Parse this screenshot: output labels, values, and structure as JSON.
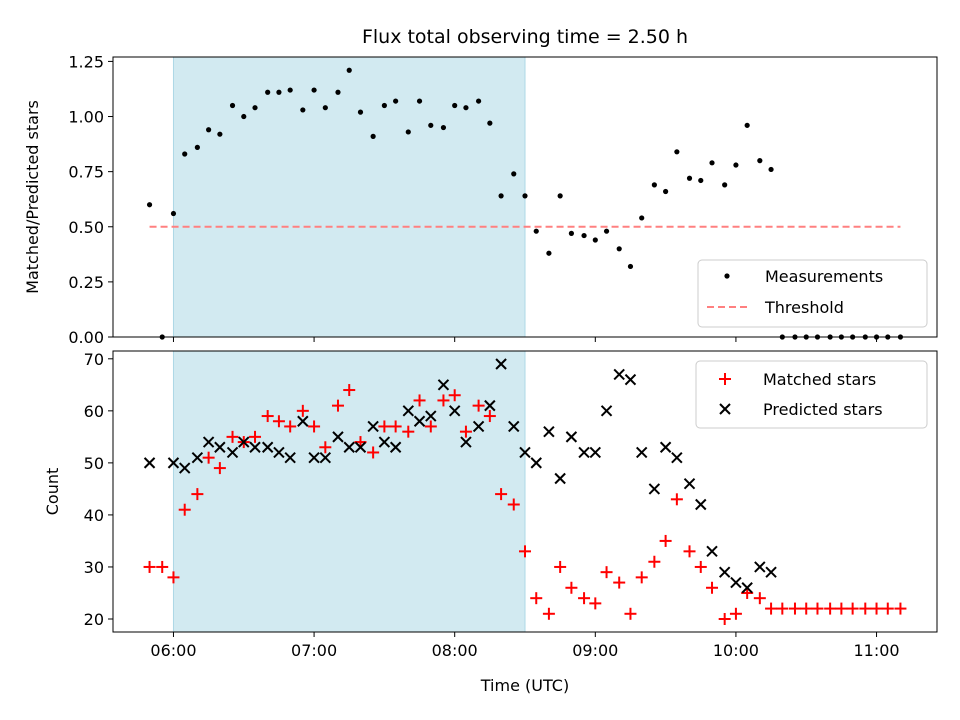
{
  "chart_data": {
    "type": "scatter",
    "title": "Flux total observing time = 2.50 h",
    "xlabel": "Time (UTC)",
    "x_ticks": [
      "06:00",
      "07:00",
      "08:00",
      "09:00",
      "10:00",
      "11:00"
    ],
    "x_tick_hours": [
      6,
      7,
      8,
      9,
      10,
      11
    ],
    "xlim_hours": [
      5.57,
      11.43
    ],
    "shaded_interval_hours": [
      6.0,
      8.5
    ],
    "shade_color": "#add8e6",
    "top": {
      "ylabel": "Matched/Predicted stars",
      "ylim": [
        0,
        1.27
      ],
      "y_ticks": [
        "0.00",
        "0.25",
        "0.50",
        "0.75",
        "1.00",
        "1.25"
      ],
      "threshold": 0.5,
      "threshold_x_range_hours": [
        5.83,
        11.17
      ],
      "threshold_color": "#ff8080",
      "point_color": "#000000",
      "legend": [
        "Measurements",
        "Threshold"
      ],
      "x_hours": [
        5.83,
        5.92,
        6.0,
        6.08,
        6.17,
        6.25,
        6.33,
        6.42,
        6.5,
        6.58,
        6.67,
        6.75,
        6.83,
        6.92,
        7.0,
        7.08,
        7.17,
        7.25,
        7.33,
        7.42,
        7.5,
        7.58,
        7.67,
        7.75,
        7.83,
        7.92,
        8.0,
        8.08,
        8.17,
        8.25,
        8.33,
        8.42,
        8.5,
        8.58,
        8.67,
        8.75,
        8.83,
        8.92,
        9.0,
        9.08,
        9.17,
        9.25,
        9.33,
        9.42,
        9.5,
        9.58,
        9.67,
        9.75,
        9.83,
        9.92,
        10.0,
        10.08,
        10.17,
        10.25,
        10.33,
        10.42,
        10.5,
        10.58,
        10.67,
        10.75,
        10.83,
        10.92,
        11.0,
        11.08,
        11.17
      ],
      "values": [
        0.6,
        0.0,
        0.56,
        0.83,
        0.86,
        0.94,
        0.92,
        1.05,
        1.0,
        1.04,
        1.11,
        1.11,
        1.12,
        1.03,
        1.12,
        1.04,
        1.11,
        1.21,
        1.02,
        0.91,
        1.05,
        1.07,
        0.93,
        1.07,
        0.96,
        0.95,
        1.05,
        1.04,
        1.07,
        0.97,
        0.64,
        0.74,
        0.64,
        0.48,
        0.38,
        0.64,
        0.47,
        0.46,
        0.44,
        0.48,
        0.4,
        0.32,
        0.54,
        0.69,
        0.66,
        0.84,
        0.72,
        0.71,
        0.79,
        0.69,
        0.78,
        0.96,
        0.8,
        0.76,
        0.0,
        0.0,
        0.0,
        0.0,
        0.0,
        0.0,
        0.0,
        0.0,
        0.0,
        0.0,
        0.0
      ]
    },
    "bottom": {
      "ylabel": "Count",
      "ylim": [
        17.5,
        71.5
      ],
      "y_ticks": [
        "20",
        "30",
        "40",
        "50",
        "60",
        "70"
      ],
      "legend": [
        "Matched stars",
        "Predicted stars"
      ],
      "series": [
        {
          "name": "Matched stars",
          "color": "#ff0000",
          "marker": "plus",
          "x_hours": [
            5.83,
            5.92,
            6.0,
            6.08,
            6.17,
            6.25,
            6.33,
            6.42,
            6.5,
            6.58,
            6.67,
            6.75,
            6.83,
            6.92,
            7.0,
            7.08,
            7.17,
            7.25,
            7.33,
            7.42,
            7.5,
            7.58,
            7.67,
            7.75,
            7.83,
            7.92,
            8.0,
            8.08,
            8.17,
            8.25,
            8.33,
            8.42,
            8.5,
            8.58,
            8.67,
            8.75,
            8.83,
            8.92,
            9.0,
            9.08,
            9.17,
            9.25,
            9.33,
            9.42,
            9.5,
            9.58,
            9.67,
            9.75,
            9.83,
            9.92,
            10.0,
            10.08,
            10.17,
            10.25,
            10.33,
            10.42,
            10.5,
            10.58,
            10.67,
            10.75,
            10.83,
            10.92,
            11.0,
            11.08,
            11.17
          ],
          "values": [
            30,
            30,
            28,
            41,
            44,
            51,
            49,
            55,
            54,
            55,
            59,
            58,
            57,
            60,
            57,
            53,
            61,
            64,
            54,
            52,
            57,
            57,
            56,
            62,
            57,
            62,
            63,
            56,
            61,
            59,
            44,
            42,
            33,
            24,
            21,
            30,
            26,
            24,
            23,
            29,
            27,
            21,
            28,
            31,
            35,
            43,
            33,
            30,
            26,
            20,
            21,
            25,
            24,
            22,
            22,
            22,
            22,
            22,
            22,
            22,
            22,
            22,
            22,
            22,
            22
          ]
        },
        {
          "name": "Predicted stars",
          "color": "#000000",
          "marker": "x",
          "x_hours": [
            5.83,
            6.0,
            6.08,
            6.17,
            6.25,
            6.33,
            6.42,
            6.5,
            6.58,
            6.67,
            6.75,
            6.83,
            6.92,
            7.0,
            7.08,
            7.17,
            7.25,
            7.33,
            7.42,
            7.5,
            7.58,
            7.67,
            7.75,
            7.83,
            7.92,
            8.0,
            8.08,
            8.17,
            8.25,
            8.33,
            8.42,
            8.5,
            8.58,
            8.67,
            8.75,
            8.83,
            8.92,
            9.0,
            9.08,
            9.17,
            9.25,
            9.33,
            9.42,
            9.5,
            9.58,
            9.67,
            9.75,
            9.83,
            9.92,
            10.0,
            10.08,
            10.17,
            10.25
          ],
          "values": [
            50,
            50,
            49,
            51,
            54,
            53,
            52,
            54,
            53,
            53,
            52,
            51,
            58,
            51,
            51,
            55,
            53,
            53,
            57,
            54,
            53,
            60,
            58,
            59,
            65,
            60,
            54,
            57,
            61,
            69,
            57,
            52,
            50,
            56,
            47,
            55,
            52,
            52,
            60,
            67,
            66,
            52,
            45,
            53,
            51,
            46,
            42,
            33,
            29,
            27,
            26,
            30,
            29
          ]
        }
      ]
    }
  }
}
